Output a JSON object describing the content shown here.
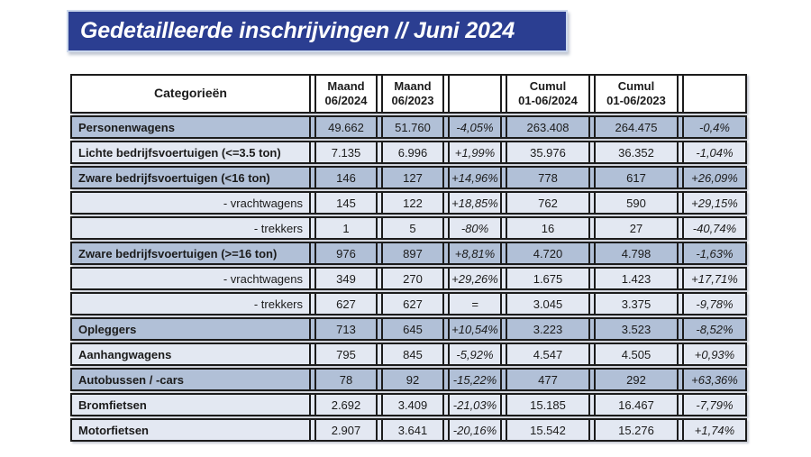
{
  "title": "Gedetailleerde inschrijvingen // Juni 2024",
  "colors": {
    "banner_bg": "#2b3e91",
    "banner_border": "#ccd8ec",
    "band_dark": "#b1c0d7",
    "band_light": "#e3e8f2",
    "border": "#1c1c1c",
    "title_text": "#ffffff"
  },
  "table": {
    "header": {
      "category": "Categorieën",
      "cols": [
        {
          "line1": "Maand",
          "line2": "06/2024"
        },
        {
          "line1": "Maand",
          "line2": "06/2023"
        },
        {
          "line1": "",
          "line2": ""
        },
        {
          "line1": "Cumul",
          "line2": "01-06/2024"
        },
        {
          "line1": "Cumul",
          "line2": "01-06/2023"
        },
        {
          "line1": "",
          "line2": ""
        }
      ]
    },
    "rows": [
      {
        "label": "Personenwagens",
        "indent": false,
        "shade": "dark",
        "values": [
          "49.662",
          "51.760",
          "-4,05%",
          "263.408",
          "264.475",
          "-0,4%"
        ]
      },
      {
        "label": "Lichte bedrijfsvoertuigen (<=3.5 ton)",
        "indent": false,
        "shade": "light",
        "values": [
          "7.135",
          "6.996",
          "+1,99%",
          "35.976",
          "36.352",
          "-1,04%"
        ]
      },
      {
        "label": "Zware bedrijfsvoertuigen (<16 ton)",
        "indent": false,
        "shade": "dark",
        "values": [
          "146",
          "127",
          "+14,96%",
          "778",
          "617",
          "+26,09%"
        ]
      },
      {
        "label": "- vrachtwagens",
        "indent": true,
        "shade": "light",
        "values": [
          "145",
          "122",
          "+18,85%",
          "762",
          "590",
          "+29,15%"
        ]
      },
      {
        "label": "- trekkers",
        "indent": true,
        "shade": "light",
        "values": [
          "1",
          "5",
          "-80%",
          "16",
          "27",
          "-40,74%"
        ]
      },
      {
        "label": "Zware bedrijfsvoertuigen (>=16 ton)",
        "indent": false,
        "shade": "dark",
        "values": [
          "976",
          "897",
          "+8,81%",
          "4.720",
          "4.798",
          "-1,63%"
        ]
      },
      {
        "label": "- vrachtwagens",
        "indent": true,
        "shade": "light",
        "values": [
          "349",
          "270",
          "+29,26%",
          "1.675",
          "1.423",
          "+17,71%"
        ]
      },
      {
        "label": "- trekkers",
        "indent": true,
        "shade": "light",
        "values": [
          "627",
          "627",
          "=",
          "3.045",
          "3.375",
          "-9,78%"
        ]
      },
      {
        "label": "Opleggers",
        "indent": false,
        "shade": "dark",
        "values": [
          "713",
          "645",
          "+10,54%",
          "3.223",
          "3.523",
          "-8,52%"
        ]
      },
      {
        "label": "Aanhangwagens",
        "indent": false,
        "shade": "light",
        "values": [
          "795",
          "845",
          "-5,92%",
          "4.547",
          "4.505",
          "+0,93%"
        ]
      },
      {
        "label": "Autobussen / -cars",
        "indent": false,
        "shade": "dark",
        "values": [
          "78",
          "92",
          "-15,22%",
          "477",
          "292",
          "+63,36%"
        ]
      },
      {
        "label": "Bromfietsen",
        "indent": false,
        "shade": "light",
        "values": [
          "2.692",
          "3.409",
          "-21,03%",
          "15.185",
          "16.467",
          "-7,79%"
        ]
      },
      {
        "label": "Motorfietsen",
        "indent": false,
        "shade": "light",
        "values": [
          "2.907",
          "3.641",
          "-20,16%",
          "15.542",
          "15.276",
          "+1,74%"
        ]
      }
    ]
  }
}
